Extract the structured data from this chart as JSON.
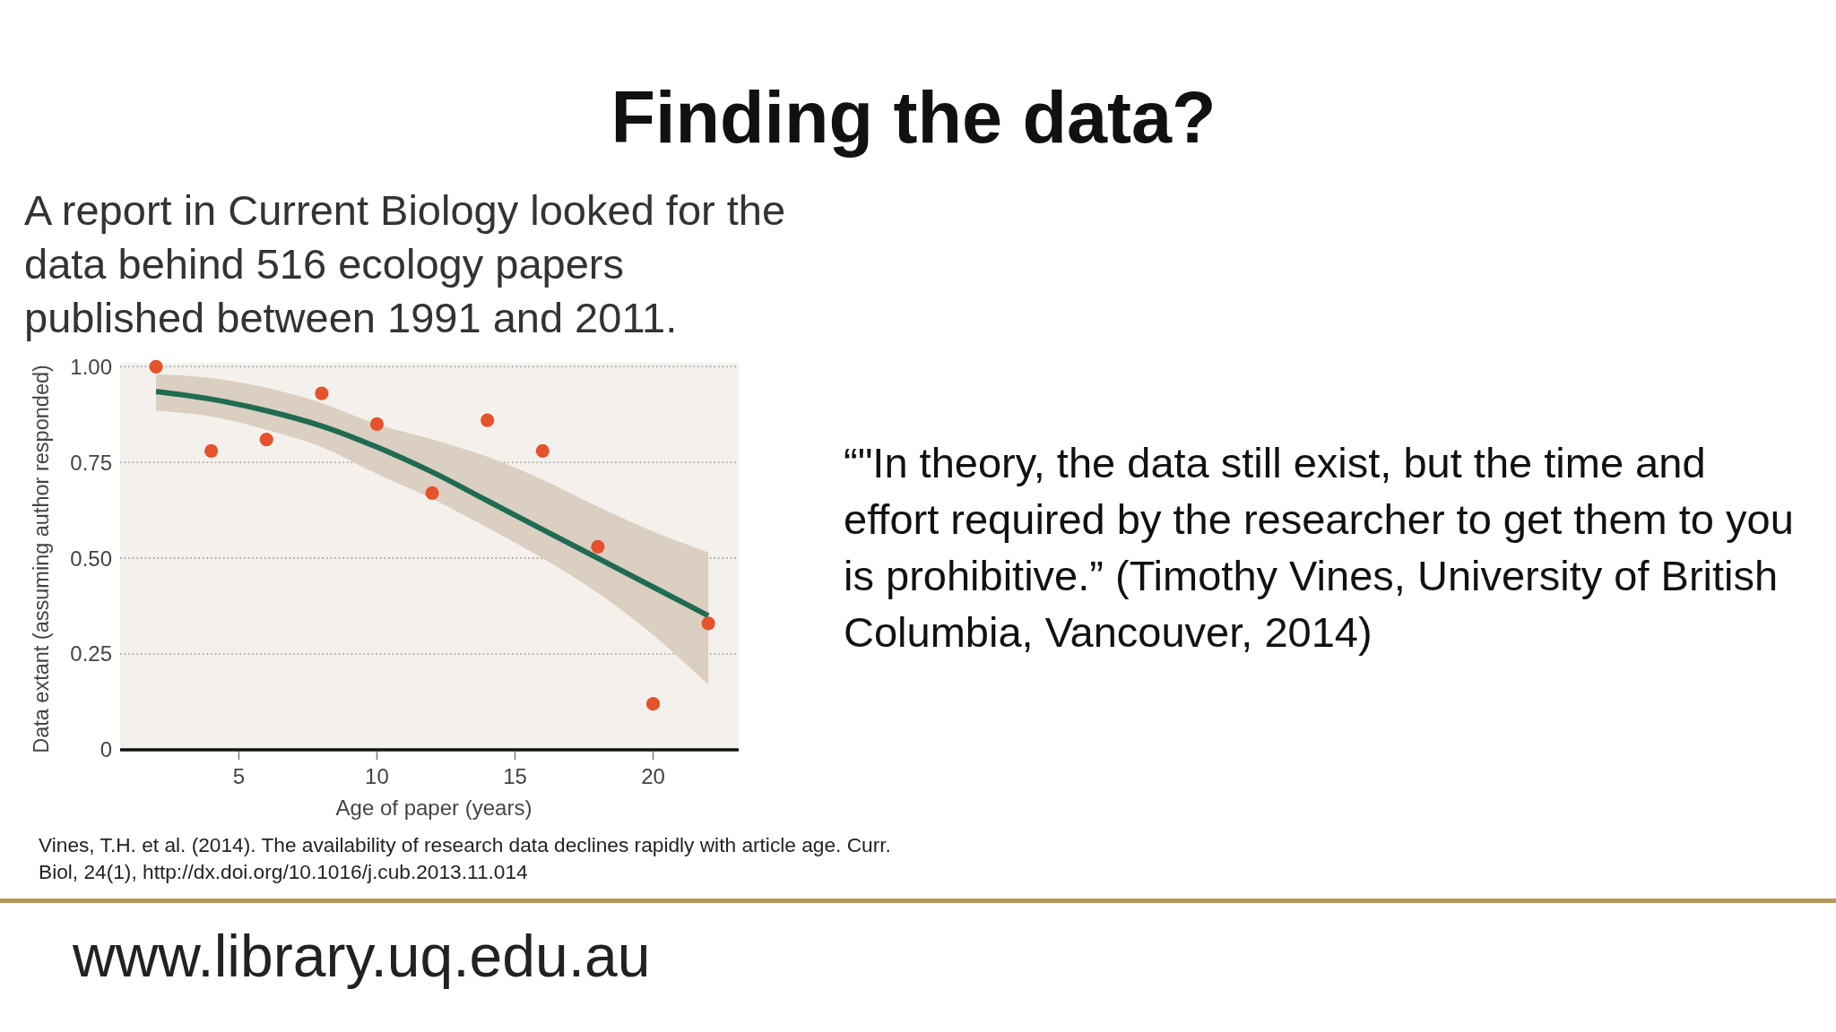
{
  "chart_data": {
    "type": "scatter",
    "title": "Finding the data?",
    "subtitle": "A report in Current Biology looked for the data behind 516 ecology papers published between 1991 and 2011.",
    "xlabel": "Age of paper (years)",
    "ylabel": "Data extant (assuming author responded)",
    "annotations": [
      "“\"In theory, the data still exist, but the time and effort required by the researcher to get them to you is prohibitive.” (Timothy Vines, University of British Columbia, Vancouver, 2014)",
      "Vines, T.H. et al. (2014). The availability of research data declines rapidly with article age. Curr. Biol, 24(1), http://dx.doi.org/10.1016/j.cub.2013.11.014",
      "www.library.uq.edu.au"
    ],
    "xlim": [
      0.7,
      23.1
    ],
    "xticks": [
      5,
      10,
      15,
      20
    ],
    "ylim": [
      0,
      1.01
    ],
    "yticks": [
      0,
      0.25,
      {
        "value": 0.5,
        "label": "0.50"
      },
      0.75,
      {
        "value": 1,
        "label": "1.00"
      }
    ],
    "grid": "y",
    "series": [
      {
        "color": "#e5522c",
        "marker": "circle",
        "x": [
          2,
          4,
          6,
          8,
          10,
          12,
          14,
          16,
          18,
          20,
          22
        ],
        "values": [
          1.0,
          0.78,
          0.81,
          0.93,
          0.85,
          0.67,
          0.86,
          0.78,
          0.53,
          0.12,
          0.33
        ]
      },
      {
        "type": "line",
        "color": "#1f6b52",
        "x": [
          2,
          4,
          6,
          8,
          10,
          12,
          14,
          16,
          18,
          20,
          22
        ],
        "values": [
          0.935,
          0.915,
          0.885,
          0.845,
          0.79,
          0.725,
          0.65,
          0.575,
          0.5,
          0.425,
          0.35
        ],
        "lower": [
          0.885,
          0.87,
          0.835,
          0.79,
          0.72,
          0.655,
          0.58,
          0.5,
          0.41,
          0.3,
          0.17
        ],
        "upper": [
          0.98,
          0.97,
          0.945,
          0.905,
          0.85,
          0.81,
          0.765,
          0.705,
          0.635,
          0.57,
          0.515
        ]
      }
    ]
  }
}
